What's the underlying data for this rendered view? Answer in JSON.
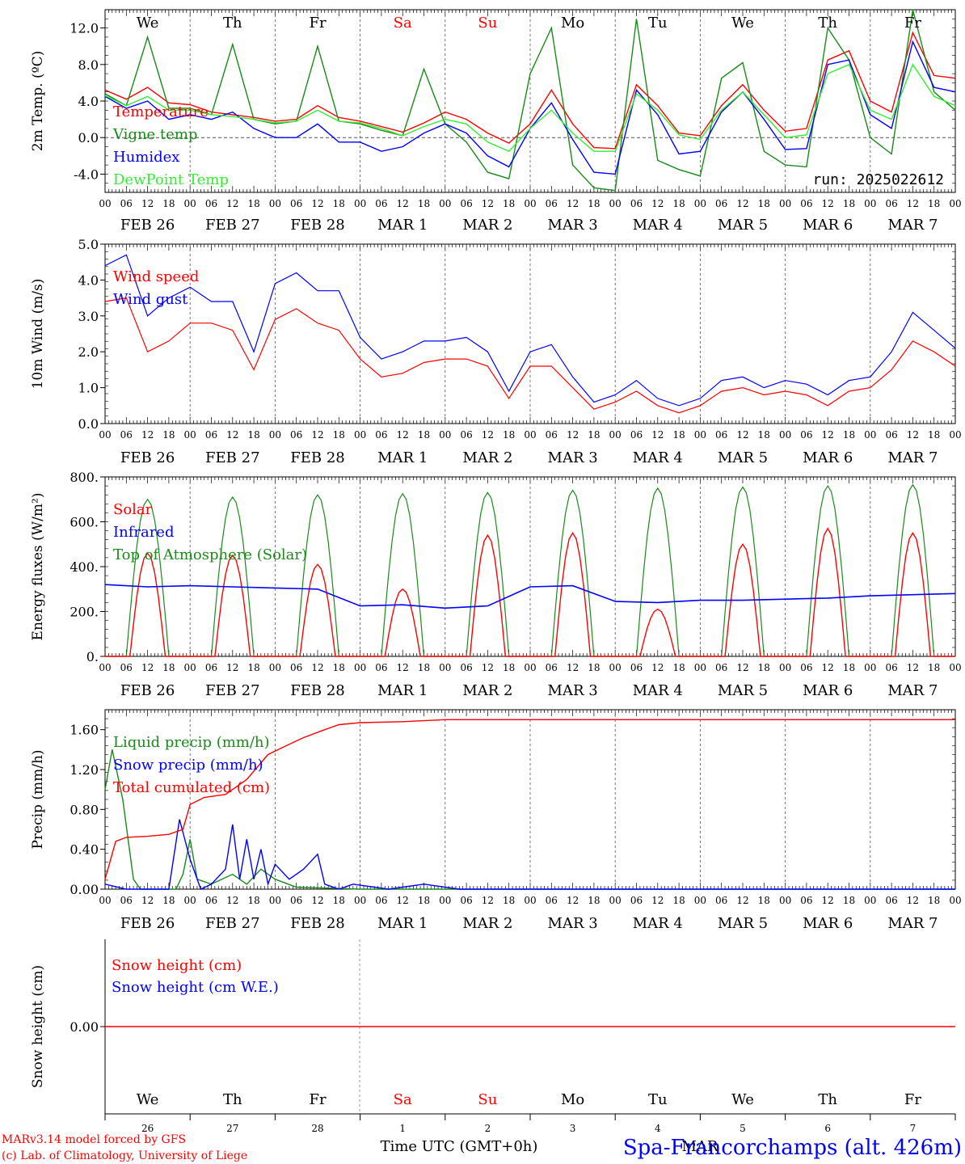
{
  "colors": {
    "red": "#ff0000",
    "green": "#1a8a1a",
    "blue": "#0000ff",
    "lime": "#33ee33",
    "axis": "#000000"
  },
  "day_names": [
    "We",
    "Th",
    "Fr",
    "Sa",
    "Su",
    "Mo",
    "Tu",
    "We",
    "Th",
    "Fr"
  ],
  "day_name_colors": [
    "black",
    "black",
    "black",
    "red",
    "red",
    "black",
    "black",
    "black",
    "black",
    "black"
  ],
  "hour_ticks": [
    "00",
    "06",
    "12",
    "18"
  ],
  "final_hour_tick": "00",
  "date_labels": [
    "FEB 26",
    "FEB 27",
    "FEB 28",
    "MAR  1",
    "MAR  2",
    "MAR  3",
    "MAR  4",
    "MAR  5",
    "MAR  6",
    "MAR  7"
  ],
  "bottom_day_numbers": [
    "26",
    "27",
    "28",
    "1",
    "2",
    "3",
    "4",
    "5",
    "6",
    "7"
  ],
  "bottom_month": "MAR",
  "run_label": "run: 2025022612",
  "credit_line1": "MARv3.14 model forced by GFS",
  "credit_line2": "(c) Lab. of Climatology, University of Liege",
  "time_axis_label": "Time UTC (GMT+0h)",
  "station_label": "Spa-Francorchamps (alt. 426m)",
  "chart_data": [
    {
      "type": "line",
      "ylabel": "2m Temp. (ºC)",
      "ylim": [
        -6,
        14
      ],
      "yticks": [
        "-4.0",
        "0.0",
        "4.0",
        "8.0",
        "12.0"
      ],
      "x_hours": [
        0,
        6,
        12,
        18,
        24,
        30,
        36,
        42,
        48,
        54,
        60,
        66,
        72,
        78,
        84,
        90,
        96,
        102,
        108,
        114,
        120,
        126,
        132,
        138,
        144,
        150,
        156,
        162,
        168,
        174,
        180,
        186,
        192,
        198,
        204,
        210,
        216,
        222,
        228,
        234,
        240
      ],
      "series": [
        {
          "name": "Temperature",
          "color": "red",
          "values": [
            5.2,
            4.2,
            5.5,
            3.8,
            3.6,
            2.8,
            2.5,
            2.2,
            1.8,
            2.0,
            3.5,
            2.2,
            1.8,
            1.2,
            0.6,
            1.6,
            2.8,
            2.0,
            0.5,
            -0.6,
            1.5,
            5.2,
            1.5,
            -1.1,
            -1.2,
            5.8,
            3.5,
            0.5,
            0.2,
            3.5,
            5.8,
            3.0,
            0.7,
            1.0,
            8.5,
            9.5,
            4.0,
            2.8,
            11.5,
            6.8,
            6.5
          ]
        },
        {
          "name": "Vigne temp",
          "color": "green",
          "values": [
            4.8,
            3.5,
            11,
            3.2,
            3.2,
            2.5,
            10.2,
            2.0,
            1.5,
            1.8,
            10.0,
            1.8,
            1.5,
            0.8,
            0.2,
            7.5,
            1.5,
            -0.5,
            -3.8,
            -4.5,
            7.0,
            12.0,
            -3.0,
            -5.5,
            -5.8,
            13.0,
            -2.5,
            -3.5,
            -4.2,
            6.5,
            8.2,
            -1.5,
            -3.0,
            -3.2,
            12.0,
            8.5,
            0.0,
            -1.8,
            14.0,
            5.0,
            3.0
          ]
        },
        {
          "name": "Humidex",
          "color": "blue",
          "values": [
            4.5,
            3.2,
            4.0,
            2.0,
            2.5,
            2.0,
            2.8,
            1.0,
            0.0,
            0.0,
            1.5,
            -0.5,
            -0.5,
            -1.5,
            -1.0,
            0.5,
            1.5,
            0.5,
            -2.0,
            -3.2,
            1.0,
            3.8,
            -0.2,
            -3.8,
            -4.0,
            5.2,
            2.5,
            -1.8,
            -1.5,
            2.8,
            5.0,
            2.0,
            -1.3,
            -1.2,
            8.0,
            8.5,
            2.5,
            1.0,
            10.5,
            5.5,
            5.0
          ]
        },
        {
          "name": "DewPoint Temp",
          "color": "lime",
          "values": [
            4.6,
            3.5,
            4.5,
            3.0,
            3.0,
            2.5,
            2.3,
            2.0,
            1.6,
            1.8,
            3.0,
            1.8,
            1.6,
            1.0,
            0.2,
            1.2,
            2.0,
            1.5,
            -0.5,
            -1.5,
            1.0,
            3.0,
            0.5,
            -1.5,
            -1.5,
            4.8,
            3.0,
            0.3,
            -0.2,
            3.0,
            5.0,
            2.5,
            0.0,
            0.3,
            7.0,
            8.0,
            3.0,
            2.0,
            8.0,
            4.5,
            3.5
          ]
        }
      ]
    },
    {
      "type": "line",
      "ylabel": "10m Wind (m/s)",
      "ylim": [
        0,
        5
      ],
      "yticks": [
        "0.0",
        "1.0",
        "2.0",
        "3.0",
        "4.0",
        "5.0"
      ],
      "x_hours": [
        0,
        6,
        12,
        18,
        24,
        30,
        36,
        42,
        48,
        54,
        60,
        66,
        72,
        78,
        84,
        90,
        96,
        102,
        108,
        114,
        120,
        126,
        132,
        138,
        144,
        150,
        156,
        162,
        168,
        174,
        180,
        186,
        192,
        198,
        204,
        210,
        216,
        222,
        228,
        234,
        240
      ],
      "series": [
        {
          "name": "Wind speed",
          "color": "red",
          "values": [
            3.4,
            3.5,
            2.0,
            2.3,
            2.8,
            2.8,
            2.6,
            1.5,
            2.9,
            3.2,
            2.8,
            2.6,
            1.8,
            1.3,
            1.4,
            1.7,
            1.8,
            1.8,
            1.6,
            0.7,
            1.6,
            1.6,
            1.0,
            0.4,
            0.6,
            0.9,
            0.5,
            0.3,
            0.5,
            0.9,
            1.0,
            0.8,
            0.9,
            0.8,
            0.5,
            0.9,
            1.0,
            1.5,
            2.3,
            2.0,
            1.6
          ]
        },
        {
          "name": "Wind gust",
          "color": "blue",
          "values": [
            4.4,
            4.7,
            3.0,
            3.5,
            3.8,
            3.4,
            3.4,
            2.0,
            3.9,
            4.2,
            3.7,
            3.7,
            2.4,
            1.8,
            2.0,
            2.3,
            2.3,
            2.4,
            2.0,
            0.9,
            2.0,
            2.2,
            1.3,
            0.6,
            0.8,
            1.2,
            0.7,
            0.5,
            0.7,
            1.2,
            1.3,
            1.0,
            1.2,
            1.1,
            0.8,
            1.2,
            1.3,
            2.0,
            3.1,
            2.6,
            2.1
          ]
        }
      ]
    },
    {
      "type": "line",
      "ylabel": "Energy fluxes (W/m²)",
      "ylim": [
        0,
        800
      ],
      "yticks": [
        "0.",
        "200.",
        "400.",
        "600.",
        "800."
      ],
      "days": 10,
      "toa_peaks": [
        700,
        710,
        720,
        725,
        730,
        740,
        750,
        755,
        760,
        765
      ],
      "solar_peaks": [
        460,
        450,
        410,
        300,
        540,
        550,
        210,
        500,
        570,
        550
      ],
      "infrared": [
        320,
        310,
        315,
        310,
        305,
        300,
        225,
        230,
        215,
        225,
        310,
        315,
        245,
        240,
        250,
        250,
        255,
        260,
        270,
        275,
        280
      ],
      "series": [
        {
          "name": "Solar",
          "color": "red"
        },
        {
          "name": "Infrared",
          "color": "blue"
        },
        {
          "name": "Top of Atmosphere (Solar)",
          "color": "green"
        }
      ]
    },
    {
      "type": "line",
      "ylabel": "Precip (mm/h)",
      "ylim": [
        0,
        1.8
      ],
      "yticks": [
        "0.00",
        "0.40",
        "0.80",
        "1.20",
        "1.60"
      ],
      "series": [
        {
          "name": "Liquid precip (mm/h)",
          "color": "green",
          "points": [
            [
              0,
              1.0
            ],
            [
              2,
              1.4
            ],
            [
              5,
              0.9
            ],
            [
              8,
              0.1
            ],
            [
              10,
              0.0
            ],
            [
              20,
              0.0
            ],
            [
              22,
              0.15
            ],
            [
              24,
              0.5
            ],
            [
              26,
              0.1
            ],
            [
              30,
              0.05
            ],
            [
              36,
              0.15
            ],
            [
              40,
              0.05
            ],
            [
              44,
              0.2
            ],
            [
              48,
              0.1
            ],
            [
              54,
              0.02
            ],
            [
              72,
              0.0
            ],
            [
              120,
              0.0
            ],
            [
              240,
              0.0
            ]
          ]
        },
        {
          "name": "Snow precip (mm/h)",
          "color": "blue",
          "points": [
            [
              0,
              0.05
            ],
            [
              6,
              0.0
            ],
            [
              18,
              0.0
            ],
            [
              21,
              0.7
            ],
            [
              24,
              0.3
            ],
            [
              27,
              0.0
            ],
            [
              30,
              0.05
            ],
            [
              34,
              0.2
            ],
            [
              36,
              0.65
            ],
            [
              38,
              0.1
            ],
            [
              40,
              0.5
            ],
            [
              42,
              0.1
            ],
            [
              44,
              0.4
            ],
            [
              46,
              0.05
            ],
            [
              48,
              0.25
            ],
            [
              52,
              0.1
            ],
            [
              56,
              0.2
            ],
            [
              60,
              0.35
            ],
            [
              62,
              0.05
            ],
            [
              66,
              0.0
            ],
            [
              70,
              0.05
            ],
            [
              80,
              0.0
            ],
            [
              90,
              0.05
            ],
            [
              100,
              0.0
            ],
            [
              240,
              0.0
            ]
          ]
        },
        {
          "name": "Total cumulated (cm)",
          "color": "red",
          "points": [
            [
              0,
              0.1
            ],
            [
              3,
              0.48
            ],
            [
              6,
              0.52
            ],
            [
              12,
              0.53
            ],
            [
              18,
              0.55
            ],
            [
              22,
              0.6
            ],
            [
              24,
              0.85
            ],
            [
              28,
              0.92
            ],
            [
              34,
              0.95
            ],
            [
              40,
              1.1
            ],
            [
              46,
              1.35
            ],
            [
              50,
              1.42
            ],
            [
              56,
              1.52
            ],
            [
              62,
              1.6
            ],
            [
              66,
              1.65
            ],
            [
              72,
              1.67
            ],
            [
              84,
              1.68
            ],
            [
              96,
              1.7
            ],
            [
              240,
              1.7
            ]
          ]
        }
      ]
    },
    {
      "type": "line",
      "ylabel": "Snow height (cm)",
      "yticks": [
        "0.00"
      ],
      "series": [
        {
          "name": "Snow height (cm)",
          "color": "red",
          "values": [
            0,
            0
          ]
        },
        {
          "name": "Snow height (cm W.E.)",
          "color": "blue",
          "values": [
            0,
            0
          ]
        }
      ]
    }
  ]
}
